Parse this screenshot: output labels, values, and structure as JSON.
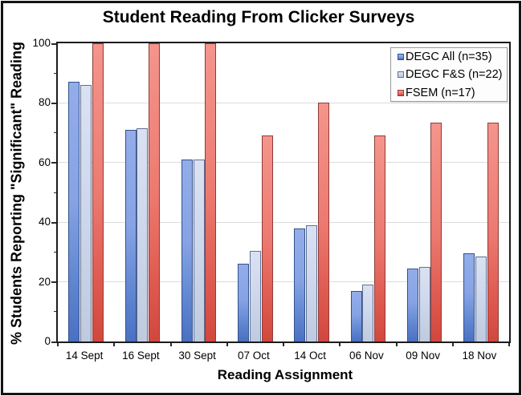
{
  "chart_data": {
    "type": "bar",
    "title": "Student Reading From Clicker Surveys",
    "xlabel": "Reading Assignment",
    "ylabel": "% Students Reporting \"Significant\" Reading",
    "categories": [
      "14 Sept",
      "16 Sept",
      "30 Sept",
      "07 Oct",
      "14 Oct",
      "06 Nov",
      "09 Nov",
      "18 Nov"
    ],
    "series": [
      {
        "name": "DEGC All (n=35)",
        "values": [
          87,
          71,
          61,
          26,
          38,
          17,
          24.5,
          29.5
        ],
        "border_color": "#33518a",
        "fill_stops": [
          [
            "0%",
            "#93ade9"
          ],
          [
            "45%",
            "#87a3e4"
          ],
          [
            "75%",
            "#6288d2"
          ],
          [
            "100%",
            "#4a70c2"
          ]
        ]
      },
      {
        "name": "DEGC F&S (n=22)",
        "values": [
          86,
          71.5,
          61,
          30.5,
          39,
          19,
          25,
          28.5
        ],
        "border_color": "#5f7195",
        "fill_stops": [
          [
            "0%",
            "#dae1f2"
          ],
          [
            "50%",
            "#cdd7ec"
          ],
          [
            "100%",
            "#bfcadf"
          ]
        ]
      },
      {
        "name": "FSEM (n=17)",
        "values": [
          100,
          100,
          100,
          69,
          80,
          69,
          73.5,
          73.5
        ],
        "border_color": "#8e3c37",
        "fill_stops": [
          [
            "0%",
            "#f4958c"
          ],
          [
            "50%",
            "#ec7a71"
          ],
          [
            "80%",
            "#de5a50"
          ],
          [
            "100%",
            "#d2473d"
          ]
        ]
      }
    ],
    "ylim": [
      0,
      100
    ],
    "ytick_labels": [
      "0",
      "20",
      "40",
      "60",
      "80",
      "100"
    ],
    "ytick_step": 20,
    "yminor_step": 10,
    "grid": true,
    "legend_position": "top-right"
  }
}
